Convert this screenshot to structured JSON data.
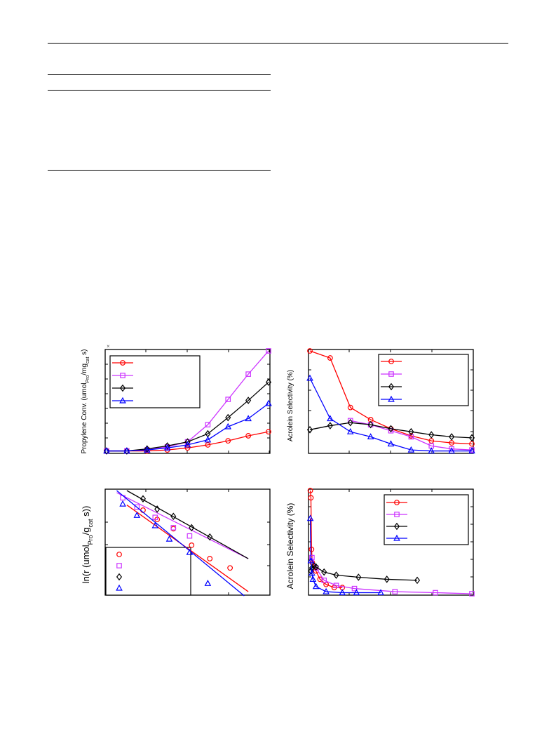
{
  "colors": {
    "red": "#ff0000",
    "magenta": "#cc33ff",
    "black": "#000000",
    "blue": "#0000ff"
  },
  "chart_data": [
    {
      "type": "line",
      "panel": "top-left",
      "ylabel_main": "Propylene Conv. (umol",
      "ylabel_sub1": "Pro",
      "ylabel_mid": "/mg",
      "ylabel_sub2": "cat",
      "ylabel_tail": " s)",
      "multiplier_mark": "×",
      "xlim": [
        0,
        8
      ],
      "ylim": [
        0,
        1.0
      ],
      "grid": false,
      "legend_position": "top-left",
      "series": [
        {
          "color": "red",
          "marker": "circle",
          "x": [
            0,
            1,
            2,
            3,
            4,
            5,
            6,
            7,
            8
          ],
          "y": [
            0.01,
            0.01,
            0.01,
            0.02,
            0.04,
            0.07,
            0.11,
            0.16,
            0.2
          ]
        },
        {
          "color": "magenta",
          "marker": "square",
          "x": [
            0,
            1,
            2,
            3,
            4,
            5,
            6,
            7,
            8
          ],
          "y": [
            0.01,
            0.01,
            0.02,
            0.05,
            0.1,
            0.27,
            0.52,
            0.77,
            1.0
          ]
        },
        {
          "color": "black",
          "marker": "diamond",
          "x": [
            0,
            1,
            2,
            3,
            4,
            5,
            6,
            7,
            8
          ],
          "y": [
            0.01,
            0.01,
            0.03,
            0.06,
            0.1,
            0.18,
            0.34,
            0.51,
            0.69
          ]
        },
        {
          "color": "blue",
          "marker": "triangle",
          "x": [
            0,
            1,
            2,
            3,
            4,
            5,
            6,
            7,
            8
          ],
          "y": [
            0.01,
            0.01,
            0.02,
            0.04,
            0.07,
            0.12,
            0.25,
            0.33,
            0.48
          ]
        }
      ]
    },
    {
      "type": "line",
      "panel": "top-right",
      "ylabel": "Acrolein Selectivity (%)",
      "xlim": [
        0,
        8
      ],
      "ylim": [
        0,
        100
      ],
      "grid": false,
      "legend_position": "top-right",
      "series": [
        {
          "color": "red",
          "marker": "circle",
          "x": [
            0,
            1,
            2,
            3,
            4,
            5,
            6,
            7,
            8
          ],
          "y": [
            100,
            93,
            44,
            32,
            23,
            16,
            11,
            9,
            8
          ]
        },
        {
          "color": "magenta",
          "marker": "square",
          "x": [
            0,
            1,
            2,
            3,
            4,
            5,
            6,
            7,
            8
          ],
          "y": [
            null,
            null,
            31,
            27,
            21,
            15,
            6,
            3,
            2
          ]
        },
        {
          "color": "black",
          "marker": "diamond",
          "x": [
            0,
            1,
            2,
            3,
            4,
            5,
            6,
            7,
            8
          ],
          "y": [
            22,
            26,
            29,
            27,
            23,
            20,
            17,
            15,
            14
          ]
        },
        {
          "color": "blue",
          "marker": "triangle",
          "x": [
            0,
            1,
            2,
            3,
            4,
            5,
            6,
            7,
            8
          ],
          "y": [
            73,
            33,
            20,
            15,
            8,
            2,
            1,
            1,
            1
          ]
        }
      ]
    },
    {
      "type": "scatter",
      "panel": "bottom-left",
      "ylabel_main": "ln(r (umol",
      "ylabel_sub1": "Pro",
      "ylabel_mid": "/g",
      "ylabel_sub2": "cat",
      "ylabel_tail": " s))",
      "xlim": [
        0,
        8
      ],
      "ylim": [
        0,
        1
      ],
      "grid": false,
      "legend_position": "bottom-left",
      "series": [
        {
          "color": "red",
          "marker": "circle",
          "x": [
            1.8,
            2.5,
            3.3,
            4.2,
            5.1,
            6.1
          ],
          "y": [
            0.81,
            0.72,
            0.63,
            0.47,
            0.34,
            0.25
          ],
          "fit": [
            [
              1,
              0.86
            ],
            [
              7,
              0.02
            ]
          ]
        },
        {
          "color": "magenta",
          "marker": "square",
          "x": [
            0.8,
            1.5,
            2.4,
            3.3,
            4.1
          ],
          "y": [
            0.93,
            0.84,
            0.74,
            0.64,
            0.56
          ],
          "fit": [
            [
              0.5,
              0.98
            ],
            [
              7,
              0.34
            ]
          ]
        },
        {
          "color": "black",
          "marker": "diamond",
          "x": [
            1.8,
            2.5,
            3.3,
            4.2,
            5.1
          ],
          "y": [
            0.92,
            0.82,
            0.75,
            0.64,
            0.55
          ],
          "fit": [
            [
              1,
              1.0
            ],
            [
              7,
              0.34
            ]
          ]
        },
        {
          "color": "blue",
          "marker": "triangle",
          "x": [
            0.8,
            1.5,
            2.4,
            3.1,
            4.1,
            5.0
          ],
          "y": [
            0.87,
            0.76,
            0.66,
            0.53,
            0.4,
            0.1
          ],
          "fit": [
            [
              0.5,
              1.0
            ],
            [
              6.8,
              -0.02
            ]
          ]
        }
      ]
    },
    {
      "type": "line",
      "panel": "bottom-right",
      "ylabel": "Acrolein Selectivity (%)",
      "xlim": [
        0,
        8
      ],
      "ylim": [
        0,
        100
      ],
      "grid": false,
      "legend_position": "top-right",
      "series": [
        {
          "color": "red",
          "marker": "circle",
          "x": [
            0.02,
            0.05,
            0.08,
            0.12,
            0.3,
            0.5,
            0.8,
            1.2,
            1.6
          ],
          "y": [
            100,
            93,
            43,
            30,
            22,
            14,
            9,
            6,
            6
          ]
        },
        {
          "color": "magenta",
          "marker": "square",
          "x": [
            0.1,
            0.3,
            0.7,
            1.3,
            2.2,
            4.2,
            6.2,
            8.0
          ],
          "y": [
            35,
            25,
            13,
            8,
            5,
            2,
            1,
            0
          ]
        },
        {
          "color": "black",
          "marker": "diamond",
          "x": [
            0.05,
            0.1,
            0.2,
            0.3,
            0.7,
            1.3,
            2.4,
            3.8,
            5.3
          ],
          "y": [
            22,
            25,
            27,
            26,
            21,
            18,
            16,
            14,
            13
          ]
        },
        {
          "color": "blue",
          "marker": "triangle",
          "x": [
            0.02,
            0.05,
            0.1,
            0.15,
            0.3,
            0.8,
            1.6,
            2.3,
            3.5
          ],
          "y": [
            73,
            32,
            20,
            14,
            7,
            2,
            1,
            1,
            1
          ]
        }
      ]
    }
  ]
}
